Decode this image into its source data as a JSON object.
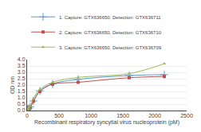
{
  "chart_data": {
    "type": "line",
    "xlabel": "Recombinant respiratory syncytial virus nucleoprotein (pM)",
    "ylabel": "OD nm",
    "xlim": [
      0,
      2500
    ],
    "ylim": [
      0,
      4
    ],
    "xticks": [
      0,
      500,
      1000,
      1500,
      2000,
      2500
    ],
    "yticks": [
      {
        "value": 0,
        "label": "0.0"
      },
      0.5,
      {
        "value": 1.0,
        "label": "1.0"
      },
      1.5,
      {
        "value": 2.0,
        "label": "2.0"
      },
      2.5,
      {
        "value": 3.0,
        "label": "3.0"
      },
      3.5,
      {
        "value": 4.0,
        "label": "4.0"
      }
    ],
    "grid": true,
    "legend": "upper left",
    "series": [
      {
        "name": "1. Capture: GTX636650, Detection: GTX636711",
        "color": "#5b9bd5",
        "marker": "plus",
        "x": [
          0,
          3.125,
          6.25,
          12.5,
          25,
          50,
          100,
          200,
          400,
          800,
          1600,
          2150
        ],
        "values": [
          0.05,
          0.07,
          0.09,
          0.12,
          0.18,
          0.3,
          0.75,
          1.55,
          2.1,
          2.45,
          2.75,
          2.82
        ]
      },
      {
        "name": "2. Capture: GTX636650, Detection: GTX636710",
        "color": "#c0504d",
        "marker": "square",
        "x": [
          0,
          3.125,
          6.25,
          12.5,
          25,
          50,
          100,
          200,
          400,
          800,
          1600,
          2150
        ],
        "values": [
          0.04,
          0.06,
          0.08,
          0.11,
          0.17,
          0.28,
          0.73,
          1.5,
          2.07,
          2.22,
          2.58,
          2.68
        ]
      },
      {
        "name": "3. Capture: GTX636650, Detection: GTX636709",
        "color": "#9bbb59",
        "marker": "triangle-up",
        "x": [
          0,
          3.125,
          6.25,
          12.5,
          25,
          50,
          100,
          200,
          400,
          800,
          1600,
          2150
        ],
        "values": [
          0.05,
          0.08,
          0.1,
          0.14,
          0.22,
          0.35,
          0.95,
          1.65,
          2.22,
          2.6,
          2.9,
          3.68
        ]
      }
    ]
  }
}
